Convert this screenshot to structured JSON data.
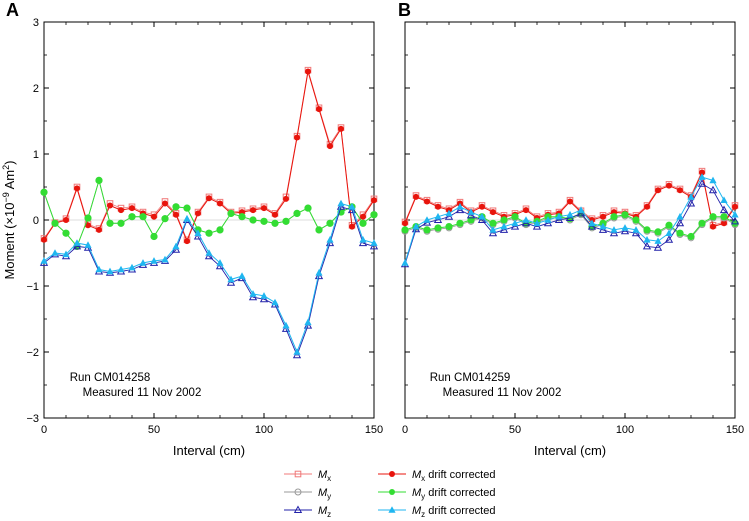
{
  "chart_data": {
    "type": "line",
    "ylabel": "Moment (×10",
    "ylabel_sup": "−9",
    "ylabel_unit": " Am",
    "ylabel_unit_sup": "2",
    "ylabel_close": ")",
    "xlabel": "Interval (cm)",
    "xlim": [
      0,
      150
    ],
    "ylim": [
      -3,
      3
    ],
    "xticks": [
      "0",
      "50",
      "100",
      "150"
    ],
    "xtick_values": [
      0,
      50,
      100,
      150
    ],
    "yticks": [
      "3",
      "2",
      "1",
      "0",
      "−1",
      "−2",
      "−3"
    ],
    "ytick_values": [
      3,
      2,
      1,
      0,
      -1,
      -2,
      -3
    ],
    "colors": {
      "mx": "#e8140c",
      "mx_raw": "#f07878",
      "my": "#33dd33",
      "my_raw": "#999999",
      "mz": "#1fb6f0",
      "mz_raw": "#2222aa"
    },
    "legend": [
      {
        "key": "mx_raw",
        "text": "M",
        "sub": "x",
        "suffix": "",
        "marker": "open-square"
      },
      {
        "key": "mx",
        "text": "M",
        "sub": "x",
        "suffix": " drift corrected",
        "marker": "filled-circle"
      },
      {
        "key": "my_raw",
        "text": "M",
        "sub": "y",
        "suffix": "",
        "marker": "open-circle"
      },
      {
        "key": "my",
        "text": "M",
        "sub": "y",
        "suffix": " drift corrected",
        "marker": "filled-circle"
      },
      {
        "key": "mz_raw",
        "text": "M",
        "sub": "z",
        "suffix": "",
        "marker": "open-triangle"
      },
      {
        "key": "mz",
        "text": "M",
        "sub": "z",
        "suffix": " drift corrected",
        "marker": "filled-triangle"
      }
    ],
    "panels": [
      {
        "letter": "A",
        "note_line1": "Run CM014258",
        "note_line2": "Measured 11 Nov 2002",
        "x": [
          0,
          5,
          10,
          15,
          20,
          25,
          30,
          35,
          40,
          45,
          50,
          55,
          60,
          65,
          70,
          75,
          80,
          85,
          90,
          95,
          100,
          105,
          110,
          115,
          120,
          125,
          130,
          135,
          140,
          145,
          150
        ],
        "series": [
          {
            "key": "mx",
            "values": [
              -0.3,
              -0.05,
              0.0,
              0.48,
              -0.08,
              -0.15,
              0.22,
              0.15,
              0.18,
              0.1,
              0.05,
              0.25,
              0.08,
              -0.32,
              0.1,
              0.33,
              0.25,
              0.1,
              0.12,
              0.15,
              0.18,
              0.08,
              0.32,
              1.25,
              2.25,
              1.68,
              1.12,
              1.38,
              -0.1,
              0.05,
              0.3
            ]
          },
          {
            "key": "mx_raw",
            "values": [
              -0.28,
              -0.04,
              0.02,
              0.5,
              -0.06,
              -0.13,
              0.25,
              0.18,
              0.2,
              0.12,
              0.08,
              0.28,
              0.1,
              -0.3,
              0.12,
              0.35,
              0.27,
              0.12,
              0.14,
              0.17,
              0.2,
              0.1,
              0.35,
              1.27,
              2.27,
              1.7,
              1.15,
              1.4,
              -0.08,
              0.08,
              0.32
            ]
          },
          {
            "key": "my",
            "values": [
              0.42,
              -0.05,
              -0.2,
              -0.4,
              0.03,
              0.6,
              -0.05,
              -0.05,
              0.05,
              0.05,
              -0.25,
              0.02,
              0.2,
              0.18,
              -0.15,
              -0.2,
              -0.15,
              0.1,
              0.05,
              0.0,
              -0.02,
              -0.05,
              -0.02,
              0.1,
              0.18,
              -0.15,
              -0.05,
              0.12,
              0.2,
              -0.05,
              0.08
            ]
          },
          {
            "key": "my_raw",
            "values": [
              0.42,
              -0.05,
              -0.2,
              -0.4,
              0.03,
              0.6,
              -0.05,
              -0.05,
              0.05,
              0.05,
              -0.25,
              0.02,
              0.2,
              0.18,
              -0.15,
              -0.2,
              -0.15,
              0.1,
              0.05,
              0.0,
              -0.02,
              -0.05,
              -0.02,
              0.1,
              0.18,
              -0.15,
              -0.05,
              0.12,
              0.2,
              -0.05,
              0.08
            ]
          },
          {
            "key": "mz",
            "values": [
              -0.62,
              -0.5,
              -0.52,
              -0.35,
              -0.38,
              -0.75,
              -0.78,
              -0.75,
              -0.72,
              -0.65,
              -0.62,
              -0.6,
              -0.4,
              0.02,
              -0.2,
              -0.5,
              -0.65,
              -0.9,
              -0.85,
              -1.12,
              -1.15,
              -1.25,
              -1.6,
              -2.0,
              -1.55,
              -0.8,
              -0.3,
              0.25,
              0.2,
              -0.3,
              -0.35
            ]
          },
          {
            "key": "mz_raw",
            "values": [
              -0.65,
              -0.52,
              -0.55,
              -0.4,
              -0.42,
              -0.78,
              -0.8,
              -0.78,
              -0.75,
              -0.68,
              -0.65,
              -0.62,
              -0.45,
              0.0,
              -0.25,
              -0.55,
              -0.7,
              -0.95,
              -0.88,
              -1.17,
              -1.2,
              -1.28,
              -1.65,
              -2.05,
              -1.6,
              -0.85,
              -0.35,
              0.2,
              0.15,
              -0.35,
              -0.4
            ]
          }
        ]
      },
      {
        "letter": "B",
        "note_line1": "Run CM014259",
        "note_line2": "Measured 11 Nov 2002",
        "x": [
          0,
          5,
          10,
          15,
          20,
          25,
          30,
          35,
          40,
          45,
          50,
          55,
          60,
          65,
          70,
          75,
          80,
          85,
          90,
          95,
          100,
          105,
          110,
          115,
          120,
          125,
          130,
          135,
          140,
          145,
          150
        ],
        "series": [
          {
            "key": "mx",
            "values": [
              -0.05,
              0.35,
              0.28,
              0.2,
              0.15,
              0.25,
              0.12,
              0.2,
              0.12,
              0.05,
              0.08,
              0.15,
              0.03,
              0.08,
              0.1,
              0.28,
              0.12,
              0.0,
              0.05,
              0.12,
              0.1,
              0.05,
              0.2,
              0.45,
              0.52,
              0.45,
              0.35,
              0.72,
              -0.1,
              -0.05,
              0.2
            ]
          },
          {
            "key": "mx_raw",
            "values": [
              -0.03,
              0.37,
              0.3,
              0.22,
              0.17,
              0.27,
              0.14,
              0.22,
              0.14,
              0.07,
              0.1,
              0.17,
              0.05,
              0.1,
              0.12,
              0.3,
              0.14,
              0.02,
              0.07,
              0.14,
              0.12,
              0.07,
              0.22,
              0.47,
              0.54,
              0.47,
              0.37,
              0.74,
              -0.08,
              -0.03,
              0.22
            ]
          },
          {
            "key": "my",
            "values": [
              -0.15,
              -0.1,
              -0.15,
              -0.12,
              -0.1,
              -0.05,
              0.0,
              0.05,
              -0.05,
              0.0,
              0.05,
              -0.05,
              -0.02,
              0.05,
              0.05,
              0.02,
              0.1,
              -0.1,
              -0.05,
              0.05,
              0.08,
              0.0,
              -0.15,
              -0.18,
              -0.08,
              -0.2,
              -0.25,
              -0.05,
              0.05,
              0.05,
              -0.05
            ]
          },
          {
            "key": "my_raw",
            "values": [
              -0.17,
              -0.12,
              -0.17,
              -0.14,
              -0.12,
              -0.07,
              -0.02,
              0.03,
              -0.07,
              -0.02,
              0.03,
              -0.07,
              -0.04,
              0.03,
              0.03,
              0.0,
              0.08,
              -0.12,
              -0.07,
              0.03,
              0.06,
              -0.02,
              -0.17,
              -0.2,
              -0.1,
              -0.22,
              -0.27,
              -0.07,
              0.03,
              0.03,
              -0.07
            ]
          },
          {
            "key": "mz",
            "values": [
              -0.65,
              -0.1,
              0.0,
              0.05,
              0.1,
              0.2,
              0.12,
              0.05,
              -0.15,
              -0.1,
              -0.05,
              0.0,
              -0.05,
              0.0,
              0.05,
              0.08,
              0.15,
              -0.05,
              -0.1,
              -0.15,
              -0.12,
              -0.15,
              -0.3,
              -0.32,
              -0.2,
              0.05,
              0.35,
              0.65,
              0.6,
              0.3,
              0.08
            ]
          },
          {
            "key": "mz_raw",
            "values": [
              -0.67,
              -0.14,
              -0.04,
              0.0,
              0.05,
              0.15,
              0.07,
              0.0,
              -0.2,
              -0.15,
              -0.1,
              -0.05,
              -0.1,
              -0.05,
              0.0,
              0.03,
              0.1,
              -0.1,
              -0.15,
              -0.2,
              -0.17,
              -0.2,
              -0.4,
              -0.42,
              -0.3,
              -0.05,
              0.25,
              0.55,
              0.45,
              0.15,
              -0.02
            ]
          }
        ]
      }
    ]
  }
}
